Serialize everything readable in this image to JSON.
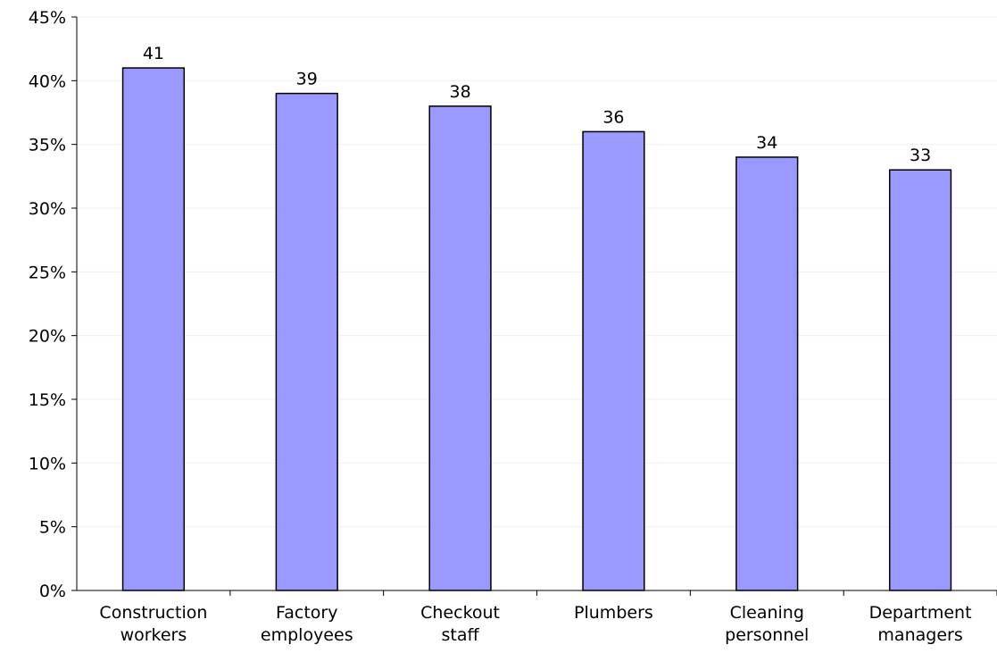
{
  "chart_data": {
    "type": "bar",
    "title": "",
    "xlabel": "",
    "ylabel": "",
    "categories": [
      [
        "Construction",
        "workers"
      ],
      [
        "Factory",
        "employees"
      ],
      [
        "Checkout",
        "staff"
      ],
      [
        "Plumbers"
      ],
      [
        "Cleaning",
        "personnel"
      ],
      [
        "Department",
        "managers"
      ]
    ],
    "values": [
      41,
      39,
      38,
      36,
      34,
      33
    ],
    "data_labels": [
      "41",
      "39",
      "38",
      "36",
      "34",
      "33"
    ],
    "ylim": [
      0,
      45
    ],
    "yticks": [
      0,
      5,
      10,
      15,
      20,
      25,
      30,
      35,
      40,
      45
    ],
    "ytick_labels": [
      "0%",
      "5%",
      "10%",
      "15%",
      "20%",
      "25%",
      "30%",
      "35%",
      "40%",
      "45%"
    ],
    "grid": true,
    "legend": "none",
    "colors": {
      "bar_fill": "#9999ff",
      "bar_stroke": "#000000",
      "axis": "#000000",
      "grid": "#f0f0f0",
      "background": "#ffffff"
    }
  }
}
